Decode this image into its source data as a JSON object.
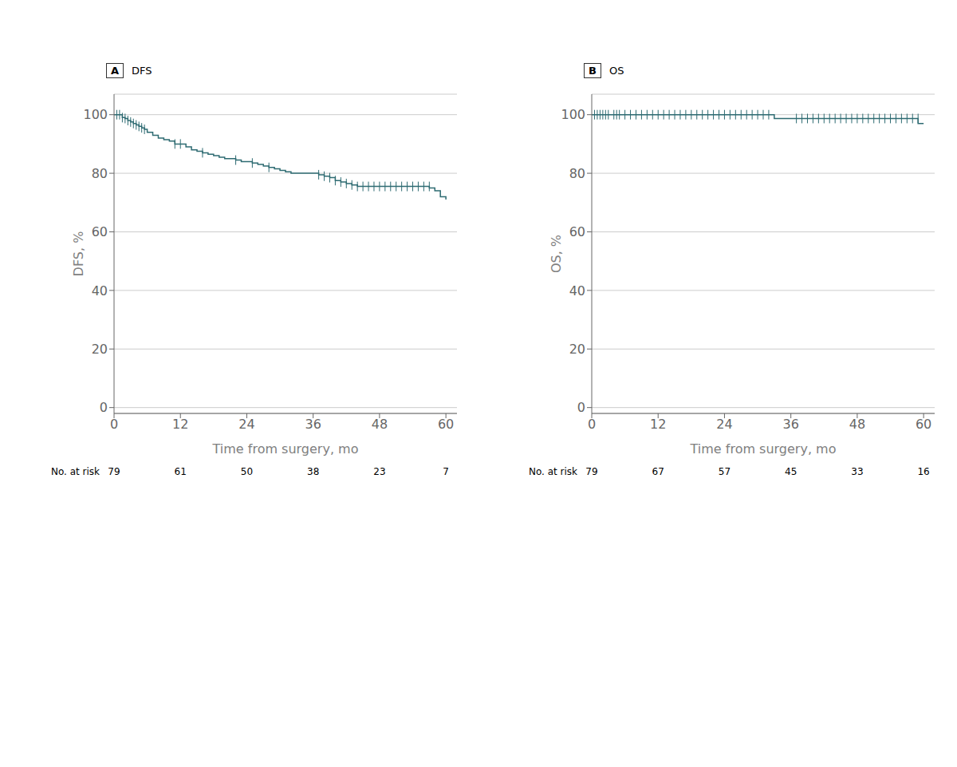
{
  "chart_data": [
    {
      "type": "line",
      "panel_label": "A",
      "title": "DFS",
      "xlabel": "Time from surgery, mo",
      "ylabel": "DFS, %",
      "xlim": [
        0,
        62
      ],
      "ylim": [
        -2,
        107
      ],
      "xticks": [
        0,
        12,
        24,
        36,
        48,
        60
      ],
      "yticks": [
        0,
        20,
        40,
        60,
        80,
        100
      ],
      "grid": "y",
      "series": [
        {
          "type": "line",
          "line_style": "step",
          "color": "#2e6b72",
          "x": [
            0,
            0.5,
            1.0,
            1.5,
            2.0,
            2.5,
            3.0,
            3.5,
            4.0,
            4.5,
            5.0,
            5.5,
            6.0,
            7.0,
            8.0,
            9.0,
            10.0,
            11.0,
            12.0,
            13.0,
            14.0,
            15.0,
            16.0,
            17.0,
            18.0,
            19.0,
            20.0,
            21.0,
            22.0,
            23.0,
            24.0,
            25.0,
            26.0,
            27.0,
            28.0,
            29.0,
            30.0,
            31.0,
            32.0,
            33.0,
            34.0,
            35.0,
            36.0,
            37.0,
            38.0,
            39.0,
            40.0,
            41.0,
            42.0,
            43.0,
            44.0,
            45.0,
            46.0,
            47.0,
            48.0,
            49.0,
            50.0,
            51.0,
            52.0,
            53.0,
            54.0,
            55.0,
            56.0,
            57.0,
            58.0,
            59.0,
            60.0
          ],
          "values": [
            100,
            100,
            100,
            99.0,
            98.7,
            98.0,
            97.5,
            97.0,
            96.5,
            96.0,
            95.5,
            95.0,
            94.0,
            93.0,
            92.0,
            91.5,
            91.0,
            90.0,
            90.0,
            89.0,
            88.0,
            87.5,
            87.0,
            86.5,
            86.0,
            85.5,
            85.0,
            85.0,
            84.5,
            84.0,
            84.0,
            83.5,
            83.0,
            82.5,
            82.0,
            81.5,
            81.0,
            80.5,
            80.0,
            80.0,
            80.0,
            80.0,
            80.0,
            79.5,
            79.0,
            78.5,
            77.5,
            77.0,
            76.5,
            76.0,
            75.5,
            75.5,
            75.5,
            75.5,
            75.5,
            75.5,
            75.5,
            75.5,
            75.5,
            75.5,
            75.5,
            75.5,
            75.5,
            75.0,
            74.0,
            72.0,
            71.0
          ]
        },
        {
          "type": "scatter",
          "marker": "|",
          "color": "#2e6b72",
          "x": [
            0.5,
            1.0,
            1.5,
            2.0,
            2.5,
            3.0,
            3.5,
            4.0,
            4.5,
            5.0,
            5.5,
            11.0,
            12.0,
            16.0,
            22.0,
            25.0,
            28.0,
            37.0,
            38.0,
            39.0,
            40.0,
            41.0,
            42.0,
            43.0,
            44.0,
            45.0,
            46.0,
            47.0,
            48.0,
            49.0,
            50.0,
            51.0,
            52.0,
            53.0,
            54.0,
            55.0,
            56.0,
            57.0
          ],
          "values": [
            100,
            100,
            99.0,
            98.7,
            98.0,
            97.5,
            97.0,
            96.5,
            96.0,
            95.5,
            95.0,
            90.0,
            90.0,
            87.0,
            84.5,
            83.5,
            82.0,
            79.5,
            79.0,
            78.5,
            77.5,
            77.0,
            76.5,
            76.0,
            75.5,
            75.5,
            75.5,
            75.5,
            75.5,
            75.5,
            75.5,
            75.5,
            75.5,
            75.5,
            75.5,
            75.5,
            75.5,
            75.5
          ]
        }
      ],
      "at_risk": {
        "label": "No. at risk",
        "x": [
          0,
          12,
          24,
          36,
          48,
          60
        ],
        "values": [
          79,
          61,
          50,
          38,
          23,
          7
        ]
      }
    },
    {
      "type": "line",
      "panel_label": "B",
      "title": "OS",
      "xlabel": "Time from surgery, mo",
      "ylabel": "OS, %",
      "xlim": [
        0,
        62
      ],
      "ylim": [
        -2,
        107
      ],
      "xticks": [
        0,
        12,
        24,
        36,
        48,
        60
      ],
      "yticks": [
        0,
        20,
        40,
        60,
        80,
        100
      ],
      "grid": "y",
      "series": [
        {
          "type": "line",
          "line_style": "step",
          "color": "#2e6b72",
          "x": [
            0,
            0.5,
            1.0,
            1.5,
            2.0,
            2.5,
            3.0,
            4.0,
            4.5,
            5.0,
            6.0,
            7.0,
            8.0,
            9.0,
            10.0,
            11.0,
            12.0,
            13.0,
            14.0,
            15.0,
            16.0,
            17.0,
            18.0,
            19.0,
            20.0,
            21.0,
            22.0,
            23.0,
            24.0,
            25.0,
            26.0,
            27.0,
            28.0,
            29.0,
            30.0,
            31.0,
            32.0,
            33.0,
            34.0,
            35.0,
            36.0,
            37.0,
            38.0,
            39.0,
            40.0,
            41.0,
            42.0,
            43.0,
            44.0,
            45.0,
            46.0,
            47.0,
            48.0,
            49.0,
            50.0,
            51.0,
            52.0,
            53.0,
            54.0,
            55.0,
            56.0,
            57.0,
            58.0,
            59.0,
            60.0
          ],
          "values": [
            100,
            100,
            100,
            100,
            100,
            100,
            100,
            100,
            100,
            100,
            100,
            100,
            100,
            100,
            100,
            100,
            100,
            100,
            100,
            100,
            100,
            100,
            100,
            100,
            100,
            100,
            100,
            100,
            100,
            100,
            100,
            100,
            100,
            100,
            100,
            100,
            100,
            98.7,
            98.7,
            98.7,
            98.7,
            98.7,
            98.7,
            98.7,
            98.7,
            98.7,
            98.7,
            98.7,
            98.7,
            98.7,
            98.7,
            98.7,
            98.7,
            98.7,
            98.7,
            98.7,
            98.7,
            98.7,
            98.7,
            98.7,
            98.7,
            98.7,
            98.7,
            97.0,
            97.0
          ]
        },
        {
          "type": "scatter",
          "marker": "|",
          "color": "#2e6b72",
          "x": [
            0.5,
            1.0,
            1.5,
            2.0,
            2.5,
            3.0,
            4.0,
            4.5,
            5.0,
            6.0,
            7.0,
            8.0,
            9.0,
            10.0,
            11.0,
            12.0,
            13.0,
            14.0,
            15.0,
            16.0,
            17.0,
            18.0,
            19.0,
            20.0,
            21.0,
            22.0,
            23.0,
            24.0,
            25.0,
            26.0,
            27.0,
            28.0,
            29.0,
            30.0,
            31.0,
            32.0,
            37.0,
            38.0,
            39.0,
            40.0,
            41.0,
            42.0,
            43.0,
            44.0,
            45.0,
            46.0,
            47.0,
            48.0,
            49.0,
            50.0,
            51.0,
            52.0,
            53.0,
            54.0,
            55.0,
            56.0,
            57.0,
            58.0,
            59.0
          ],
          "values": [
            100,
            100,
            100,
            100,
            100,
            100,
            100,
            100,
            100,
            100,
            100,
            100,
            100,
            100,
            100,
            100,
            100,
            100,
            100,
            100,
            100,
            100,
            100,
            100,
            100,
            100,
            100,
            100,
            100,
            100,
            100,
            100,
            100,
            100,
            100,
            100,
            98.7,
            98.7,
            98.7,
            98.7,
            98.7,
            98.7,
            98.7,
            98.7,
            98.7,
            98.7,
            98.7,
            98.7,
            98.7,
            98.7,
            98.7,
            98.7,
            98.7,
            98.7,
            98.7,
            98.7,
            98.7,
            98.7,
            98.7
          ]
        }
      ],
      "at_risk": {
        "label": "No. at risk",
        "x": [
          0,
          12,
          24,
          36,
          48,
          60
        ],
        "values": [
          79,
          67,
          57,
          45,
          33,
          16
        ]
      }
    }
  ]
}
